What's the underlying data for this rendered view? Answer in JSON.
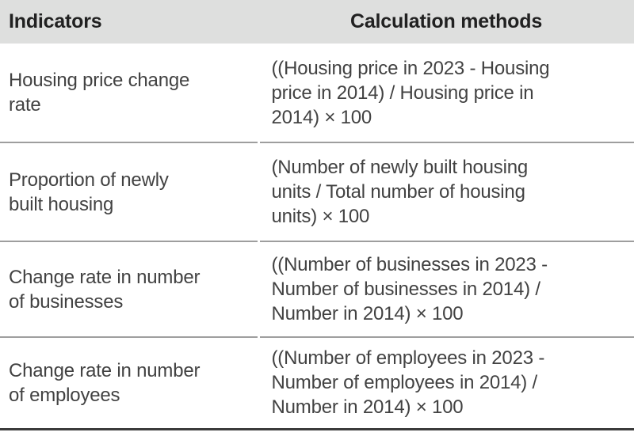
{
  "table": {
    "columns": [
      {
        "label": "Indicators"
      },
      {
        "label": "Calculation methods"
      }
    ],
    "rows": [
      {
        "indicator": "Housing price change\nrate",
        "method": "((Housing price in 2023 - Housing\nprice in 2014) / Housing price in\n2014) × 100"
      },
      {
        "indicator": "Proportion of newly\nbuilt housing",
        "method": "(Number of newly built housing\nunits / Total number of housing\nunits) × 100"
      },
      {
        "indicator": "Change rate in number\nof businesses",
        "method": "((Number of businesses in 2023 -\nNumber of businesses in 2014) /\nNumber in 2014) × 100"
      },
      {
        "indicator": "Change rate in number\nof employees",
        "method": "((Number of employees in 2023 -\nNumber of employees in 2014) /\nNumber in 2014) × 100"
      }
    ],
    "colors": {
      "header_background": "#dedfde",
      "header_text": "#212121",
      "body_text": "#424242",
      "row_divider": "#9e9e9e",
      "bottom_border": "#3b3b3b"
    }
  }
}
